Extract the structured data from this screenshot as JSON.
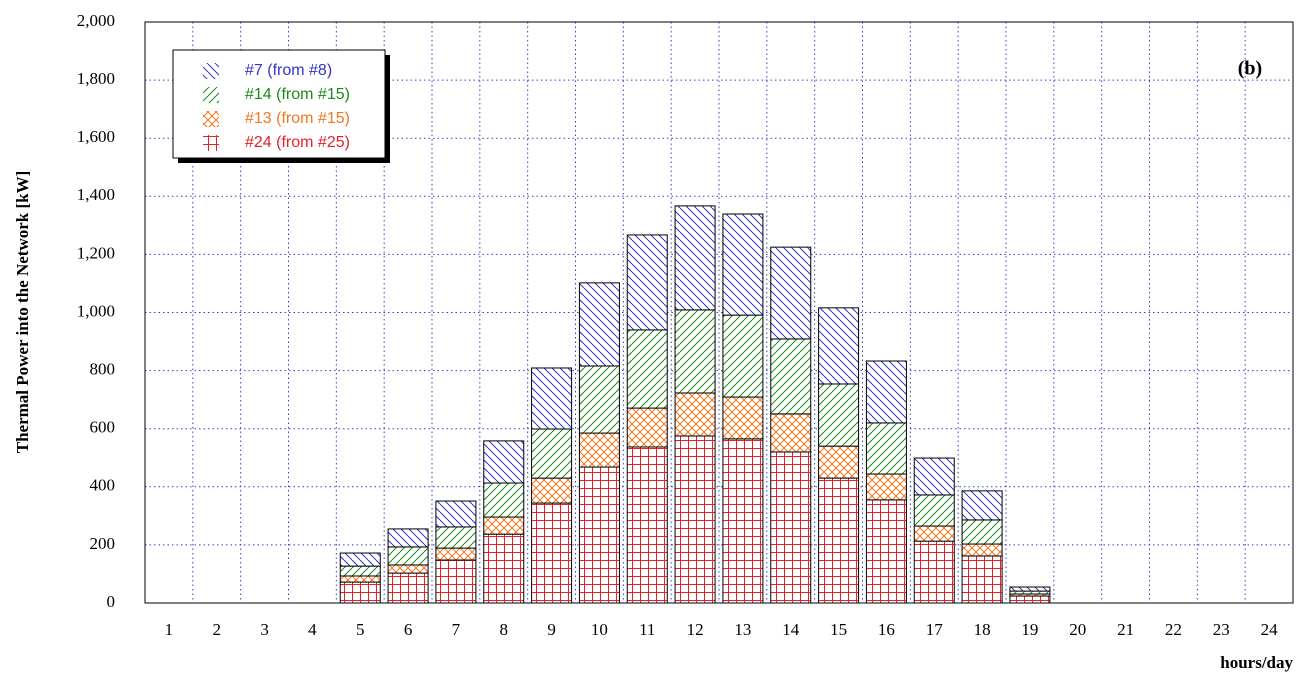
{
  "chart_data": {
    "type": "stacked_bar",
    "y_label": "Thermal Power into the Network [kW]",
    "x_label": "hours/day",
    "annotation": "(b)",
    "categories": [
      "1",
      "2",
      "3",
      "4",
      "5",
      "6",
      "7",
      "8",
      "9",
      "10",
      "11",
      "12",
      "13",
      "14",
      "15",
      "16",
      "17",
      "18",
      "19",
      "20",
      "21",
      "22",
      "23",
      "24"
    ],
    "series": [
      {
        "name": "#24 (from #25)",
        "color": "#e8202a",
        "pattern": "grid",
        "values": [
          0,
          0,
          0,
          0,
          72,
          103,
          148,
          237,
          344,
          468,
          537,
          575,
          565,
          520,
          430,
          355,
          213,
          162,
          24,
          0,
          0,
          0,
          0,
          0
        ]
      },
      {
        "name": "#13 (from #15)",
        "color": "#f07820",
        "pattern": "crosshatch",
        "values": [
          0,
          0,
          0,
          0,
          21,
          28,
          41,
          59,
          86,
          117,
          134,
          148,
          144,
          131,
          110,
          89,
          52,
          41,
          7,
          0,
          0,
          0,
          0,
          0
        ]
      },
      {
        "name": "#14 (from #15)",
        "color": "#1a8a1a",
        "pattern": "slash",
        "values": [
          0,
          0,
          0,
          0,
          34,
          62,
          73,
          117,
          169,
          231,
          269,
          286,
          282,
          258,
          214,
          176,
          107,
          83,
          10,
          0,
          0,
          0,
          0,
          0
        ]
      },
      {
        "name": "#7 (from #8)",
        "color": "#3333cc",
        "pattern": "backslash",
        "values": [
          0,
          0,
          0,
          0,
          45,
          62,
          89,
          145,
          210,
          286,
          327,
          358,
          348,
          316,
          262,
          213,
          127,
          100,
          14,
          0,
          0,
          0,
          0,
          0
        ]
      }
    ],
    "ylim": [
      0,
      2000
    ],
    "yticks": [
      0,
      200,
      400,
      600,
      800,
      {
        "value": 1000,
        "label": "1,000"
      },
      {
        "value": 1200,
        "label": "1,200"
      },
      {
        "value": 1400,
        "label": "1,400"
      },
      {
        "value": 1600,
        "label": "1,600"
      },
      {
        "value": 1800,
        "label": "1,800"
      },
      {
        "value": 2000,
        "label": "2,000"
      }
    ],
    "grid": true,
    "legend": "upper left"
  }
}
